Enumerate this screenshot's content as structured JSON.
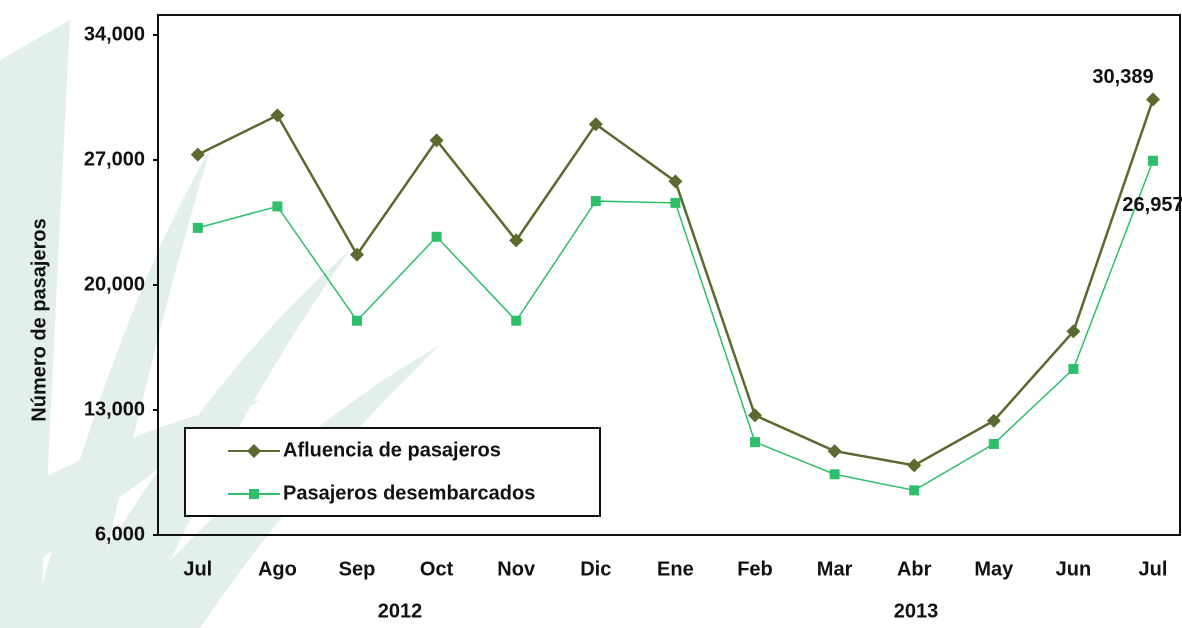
{
  "chart_data": {
    "type": "line",
    "y_label": "Número de pasajeros",
    "categories": [
      "Jul",
      "Ago",
      "Sep",
      "Oct",
      "Nov",
      "Dic",
      "Ene",
      "Feb",
      "Mar",
      "Abr",
      "May",
      "Jun",
      "Jul"
    ],
    "x_groups": [
      "2012",
      "2013"
    ],
    "series": [
      {
        "name": "Afluencia de pasajeros",
        "color": "#5b6a2e",
        "marker": "diamond",
        "values": [
          27300,
          29500,
          21700,
          28100,
          22500,
          29000,
          25800,
          12700,
          10700,
          9900,
          12400,
          17400,
          30389
        ],
        "value_labels": [
          null,
          null,
          null,
          null,
          null,
          null,
          null,
          null,
          null,
          null,
          null,
          null,
          "30,389"
        ]
      },
      {
        "name": "Pasajeros desembarcados",
        "color": "#2dbf6a",
        "marker": "square",
        "values": [
          23200,
          24400,
          18000,
          22700,
          18000,
          24700,
          24600,
          11200,
          9400,
          8500,
          11100,
          15300,
          26957
        ],
        "value_labels": [
          null,
          null,
          null,
          null,
          null,
          null,
          null,
          null,
          null,
          null,
          null,
          null,
          "26,957"
        ]
      }
    ],
    "ylim": [
      6000,
      34000
    ],
    "yticks": [
      {
        "value": 6000,
        "label": "6,000"
      },
      {
        "value": 13000,
        "label": "13,000"
      },
      {
        "value": 20000,
        "label": "20,000"
      },
      {
        "value": 27000,
        "label": "27,000"
      },
      {
        "value": 34000,
        "label": "34,000"
      }
    ],
    "legend": "lower-left"
  }
}
